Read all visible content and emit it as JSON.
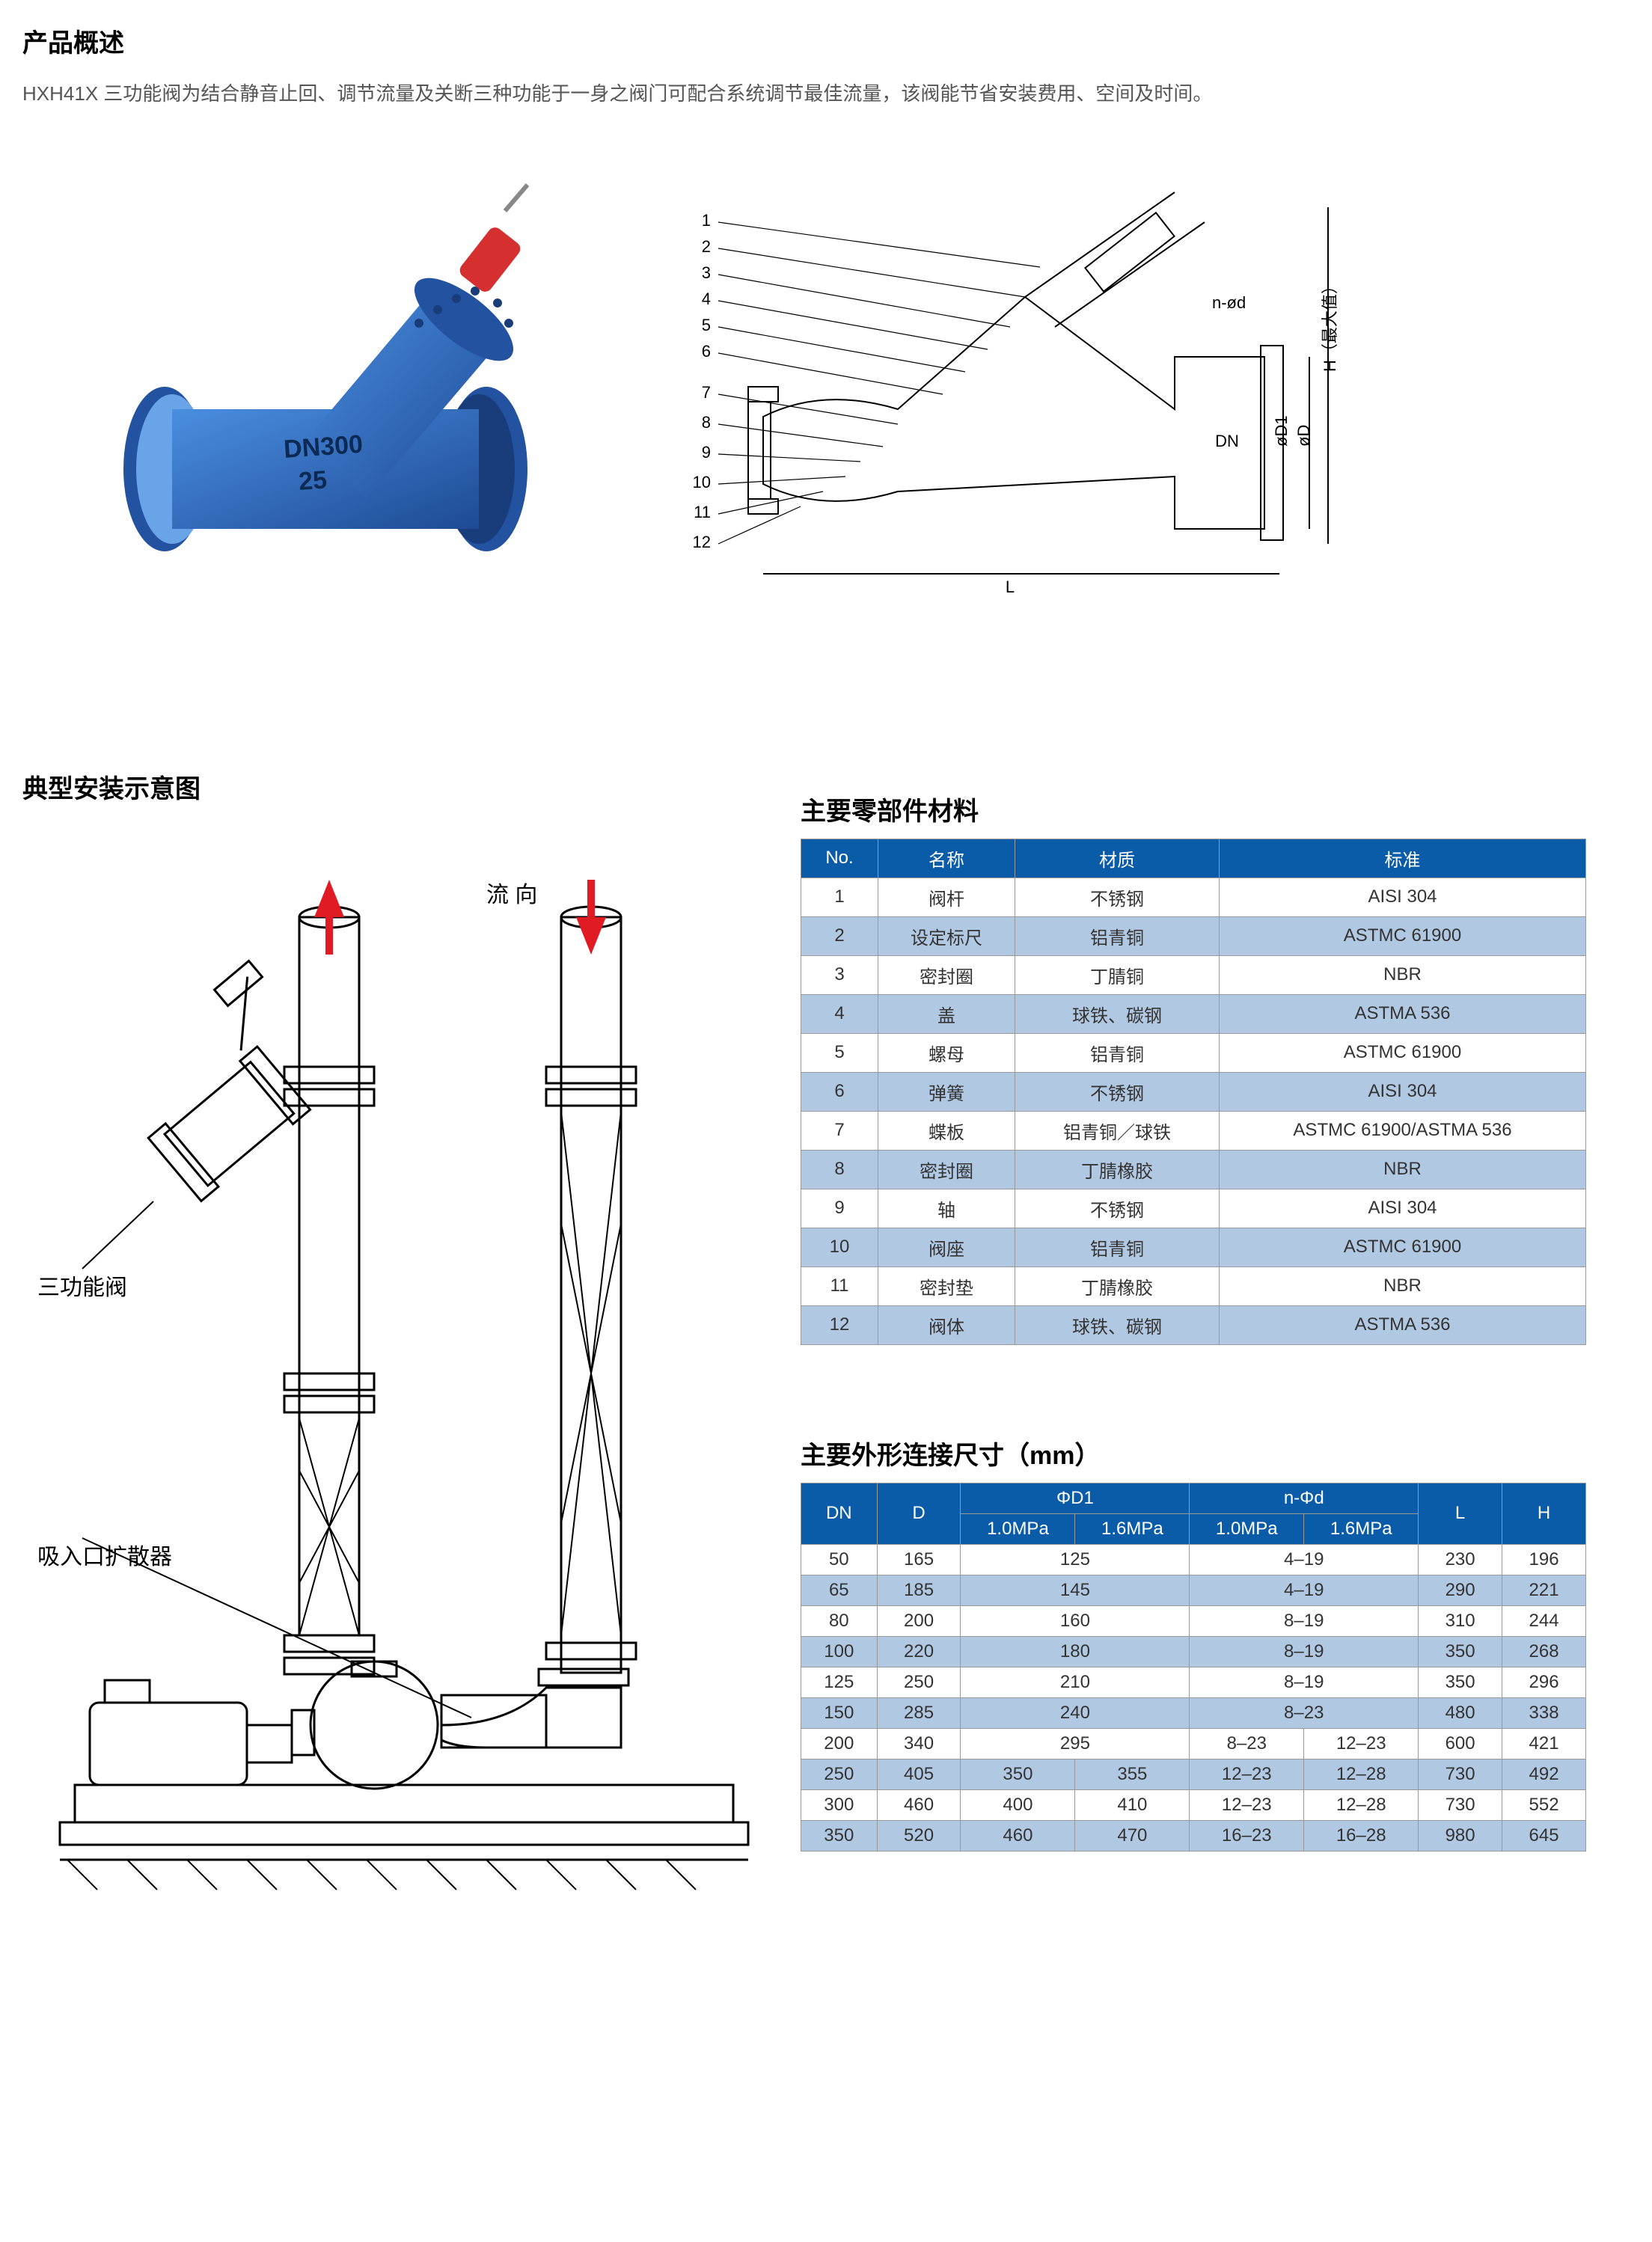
{
  "overview": {
    "title": "产品概述",
    "text": "HXH41X 三功能阀为结合静音止回、调节流量及关断三种功能于一身之阀门可配合系统调节最佳流量，该阀能节省安装费用、空间及时间。"
  },
  "install_title": "典型安装示意图",
  "install_labels": {
    "flow_dir": "流 向",
    "valve_label": "三功能阀",
    "diffuser_label": "吸入口扩散器"
  },
  "tech_drawing_labels": {
    "numbers": [
      "1",
      "2",
      "3",
      "4",
      "5",
      "6",
      "7",
      "8",
      "9",
      "10",
      "11",
      "12"
    ],
    "dims": [
      "n-ød",
      "H（最大值）",
      "DN",
      "øD1",
      "øD",
      "L"
    ]
  },
  "valve_photo": {
    "body_color": "#2f6fc4",
    "flange_color": "#2352a0",
    "handle_color": "#d62f2f",
    "text_on_body": "DN300\n25"
  },
  "parts": {
    "title": "主要零部件材料",
    "columns": [
      "No.",
      "名称",
      "材质",
      "标准"
    ],
    "rows": [
      [
        "1",
        "阀杆",
        "不锈钢",
        "AISI 304"
      ],
      [
        "2",
        "设定标尺",
        "铝青铜",
        "ASTMC 61900"
      ],
      [
        "3",
        "密封圈",
        "丁腈铜",
        "NBR"
      ],
      [
        "4",
        "盖",
        "球铁、碳钢",
        "ASTMA 536"
      ],
      [
        "5",
        "螺母",
        "铝青铜",
        "ASTMC 61900"
      ],
      [
        "6",
        "弹簧",
        "不锈钢",
        "AISI 304"
      ],
      [
        "7",
        "蝶板",
        "铝青铜／球铁",
        "ASTMC 61900/ASTMA 536"
      ],
      [
        "8",
        "密封圈",
        "丁腈橡胶",
        "NBR"
      ],
      [
        "9",
        "轴",
        "不锈钢",
        "AISI 304"
      ],
      [
        "10",
        "阀座",
        "铝青铜",
        "ASTMC 61900"
      ],
      [
        "11",
        "密封垫",
        "丁腈橡胶",
        "NBR"
      ],
      [
        "12",
        "阀体",
        "球铁、碳钢",
        "ASTMA 536"
      ]
    ],
    "header_bg": "#0b5ca8",
    "header_fg": "#ffffff",
    "row_odd_bg": "#ffffff",
    "row_even_bg": "#b1c8e3"
  },
  "dimensions": {
    "title": "主要外形连接尺寸（mm）",
    "top_headers": [
      "DN",
      "D",
      "ΦD1",
      "n-Φd",
      "L",
      "H"
    ],
    "sub_headers": [
      "1.0MPa",
      "1.6MPa",
      "1.0MPa",
      "1.6MPa"
    ],
    "rows": [
      {
        "dn": "50",
        "d": "165",
        "d1a": "125",
        "d1b": "",
        "nda": "4–19",
        "ndb": "",
        "l": "230",
        "h": "196",
        "d1_merged": true,
        "nd_merged": true
      },
      {
        "dn": "65",
        "d": "185",
        "d1a": "145",
        "d1b": "",
        "nda": "4–19",
        "ndb": "",
        "l": "290",
        "h": "221",
        "d1_merged": true,
        "nd_merged": true
      },
      {
        "dn": "80",
        "d": "200",
        "d1a": "160",
        "d1b": "",
        "nda": "8–19",
        "ndb": "",
        "l": "310",
        "h": "244",
        "d1_merged": true,
        "nd_merged": true
      },
      {
        "dn": "100",
        "d": "220",
        "d1a": "180",
        "d1b": "",
        "nda": "8–19",
        "ndb": "",
        "l": "350",
        "h": "268",
        "d1_merged": true,
        "nd_merged": true
      },
      {
        "dn": "125",
        "d": "250",
        "d1a": "210",
        "d1b": "",
        "nda": "8–19",
        "ndb": "",
        "l": "350",
        "h": "296",
        "d1_merged": true,
        "nd_merged": true
      },
      {
        "dn": "150",
        "d": "285",
        "d1a": "240",
        "d1b": "",
        "nda": "8–23",
        "ndb": "",
        "l": "480",
        "h": "338",
        "d1_merged": true,
        "nd_merged": true
      },
      {
        "dn": "200",
        "d": "340",
        "d1a": "295",
        "d1b": "",
        "nda": "8–23",
        "ndb": "12–23",
        "l": "600",
        "h": "421",
        "d1_merged": true,
        "nd_merged": false
      },
      {
        "dn": "250",
        "d": "405",
        "d1a": "350",
        "d1b": "355",
        "nda": "12–23",
        "ndb": "12–28",
        "l": "730",
        "h": "492",
        "d1_merged": false,
        "nd_merged": false
      },
      {
        "dn": "300",
        "d": "460",
        "d1a": "400",
        "d1b": "410",
        "nda": "12–23",
        "ndb": "12–28",
        "l": "730",
        "h": "552",
        "d1_merged": false,
        "nd_merged": false
      },
      {
        "dn": "350",
        "d": "520",
        "d1a": "460",
        "d1b": "470",
        "nda": "16–23",
        "ndb": "16–28",
        "l": "980",
        "h": "645",
        "d1_merged": false,
        "nd_merged": false
      }
    ]
  }
}
